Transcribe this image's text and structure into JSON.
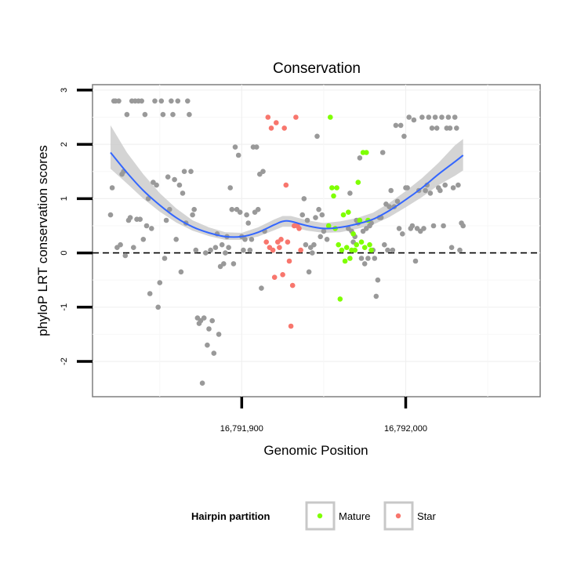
{
  "chart_data": {
    "type": "scatter",
    "title": "Conservation",
    "xlabel": "Genomic Position",
    "ylabel": "phyloP LRT conservation scores",
    "xlim": [
      16791809,
      16792082
    ],
    "ylim": [
      -2.65,
      3.1
    ],
    "x_ticks": [
      {
        "value": 16791900,
        "label": "16,791,900"
      },
      {
        "value": 16792000,
        "label": "16,792,000"
      }
    ],
    "y_ticks": [
      {
        "value": -2,
        "label": "-2"
      },
      {
        "value": -1,
        "label": "-1"
      },
      {
        "value": 0,
        "label": "0"
      },
      {
        "value": 1,
        "label": "1"
      },
      {
        "value": 2,
        "label": "2"
      },
      {
        "value": 3,
        "label": "3"
      }
    ],
    "grid": true,
    "reference_line": {
      "y": 0,
      "style": "dashed"
    },
    "legend": {
      "title": "Hairpin partition",
      "position": "bottom",
      "entries": [
        {
          "label": "Mature",
          "color": "#7FFF00"
        },
        {
          "label": "Star",
          "color": "#F8766D"
        }
      ]
    },
    "colors": {
      "other": "#999999",
      "Mature": "#7FFF00",
      "Star": "#F8766D",
      "smooth": "#3366FF",
      "ribbon": "#CCCCCC"
    },
    "series": [
      {
        "name": "",
        "partition": "other",
        "points": [
          [
            16791820,
            0.7
          ],
          [
            16791821,
            1.2
          ],
          [
            16791822,
            2.8
          ],
          [
            16791823,
            2.8
          ],
          [
            16791824,
            0.1
          ],
          [
            16791825,
            2.8
          ],
          [
            16791826,
            0.15
          ],
          [
            16791827,
            1.45
          ],
          [
            16791828,
            1.5
          ],
          [
            16791829,
            -0.05
          ],
          [
            16791830,
            2.55
          ],
          [
            16791831,
            0.6
          ],
          [
            16791832,
            0.65
          ],
          [
            16791833,
            2.8
          ],
          [
            16791834,
            0.1
          ],
          [
            16791835,
            2.8
          ],
          [
            16791836,
            0.62
          ],
          [
            16791837,
            2.8
          ],
          [
            16791838,
            0.62
          ],
          [
            16791839,
            2.8
          ],
          [
            16791840,
            0.25
          ],
          [
            16791841,
            2.55
          ],
          [
            16791842,
            0.5
          ],
          [
            16791843,
            1.0
          ],
          [
            16791844,
            -0.75
          ],
          [
            16791845,
            0.45
          ],
          [
            16791846,
            1.3
          ],
          [
            16791847,
            2.8
          ],
          [
            16791848,
            1.25
          ],
          [
            16791849,
            -1.0
          ],
          [
            16791850,
            -0.55
          ],
          [
            16791851,
            2.8
          ],
          [
            16791852,
            2.55
          ],
          [
            16791853,
            -0.1
          ],
          [
            16791854,
            0.6
          ],
          [
            16791855,
            1.4
          ],
          [
            16791856,
            0.8
          ],
          [
            16791857,
            2.8
          ],
          [
            16791858,
            2.55
          ],
          [
            16791859,
            1.35
          ],
          [
            16791860,
            0.25
          ],
          [
            16791861,
            2.8
          ],
          [
            16791862,
            1.25
          ],
          [
            16791863,
            -0.35
          ],
          [
            16791864,
            1.1
          ],
          [
            16791865,
            1.5
          ],
          [
            16791866,
            0.55
          ],
          [
            16791867,
            2.8
          ],
          [
            16791868,
            2.55
          ],
          [
            16791869,
            1.5
          ],
          [
            16791870,
            0.7
          ],
          [
            16791871,
            0.8
          ],
          [
            16791872,
            0.05
          ],
          [
            16791873,
            -1.2
          ],
          [
            16791874,
            -1.3
          ],
          [
            16791875,
            -1.25
          ],
          [
            16791876,
            -2.4
          ],
          [
            16791877,
            -1.2
          ],
          [
            16791878,
            0.0
          ],
          [
            16791879,
            -1.7
          ],
          [
            16791880,
            -1.4
          ],
          [
            16791881,
            0.05
          ],
          [
            16791882,
            -1.25
          ],
          [
            16791883,
            -1.85
          ],
          [
            16791884,
            0.1
          ],
          [
            16791885,
            0.35
          ],
          [
            16791886,
            -1.5
          ],
          [
            16791887,
            -0.25
          ],
          [
            16791888,
            0.15
          ],
          [
            16791889,
            -0.2
          ],
          [
            16791890,
            0.0
          ],
          [
            16791891,
            0.3
          ],
          [
            16791892,
            0.1
          ],
          [
            16791893,
            1.2
          ],
          [
            16791894,
            0.8
          ],
          [
            16791895,
            -0.2
          ],
          [
            16791896,
            1.95
          ],
          [
            16791897,
            0.8
          ],
          [
            16791898,
            1.8
          ],
          [
            16791899,
            0.75
          ],
          [
            16791900,
            0.3
          ],
          [
            16791901,
            0.05
          ],
          [
            16791902,
            0.25
          ],
          [
            16791903,
            0.7
          ],
          [
            16791904,
            0.55
          ],
          [
            16791905,
            0.05
          ],
          [
            16791906,
            0.25
          ],
          [
            16791907,
            1.95
          ],
          [
            16791908,
            0.75
          ],
          [
            16791909,
            1.95
          ],
          [
            16791910,
            0.8
          ],
          [
            16791911,
            1.45
          ],
          [
            16791912,
            -0.65
          ],
          [
            16791913,
            1.5
          ],
          [
            16791914,
            0.4
          ],
          [
            16791937,
            0.7
          ],
          [
            16791938,
            1.0
          ],
          [
            16791939,
            0.15
          ],
          [
            16791940,
            0.6
          ],
          [
            16791941,
            -0.35
          ],
          [
            16791942,
            0.1
          ],
          [
            16791943,
            0.0
          ],
          [
            16791944,
            0.15
          ],
          [
            16791945,
            0.65
          ],
          [
            16791946,
            2.15
          ],
          [
            16791947,
            0.8
          ],
          [
            16791948,
            0.3
          ],
          [
            16791949,
            0.7
          ],
          [
            16791950,
            0.4
          ],
          [
            16791952,
            0.25
          ],
          [
            16791965,
            0.45
          ],
          [
            16791966,
            1.1
          ],
          [
            16791967,
            0.4
          ],
          [
            16791968,
            0.2
          ],
          [
            16791969,
            0.3
          ],
          [
            16791970,
            0.6
          ],
          [
            16791971,
            0.55
          ],
          [
            16791972,
            1.75
          ],
          [
            16791973,
            -0.1
          ],
          [
            16791974,
            0.4
          ],
          [
            16791975,
            -0.2
          ],
          [
            16791976,
            0.45
          ],
          [
            16791977,
            -0.1
          ],
          [
            16791978,
            0.5
          ],
          [
            16791979,
            0.55
          ],
          [
            16791980,
            0.05
          ],
          [
            16791981,
            -0.1
          ],
          [
            16791982,
            -0.8
          ],
          [
            16791983,
            -0.5
          ],
          [
            16791984,
            0.65
          ],
          [
            16791985,
            0.65
          ],
          [
            16791986,
            1.85
          ],
          [
            16791987,
            0.15
          ],
          [
            16791988,
            0.9
          ],
          [
            16791989,
            0.05
          ],
          [
            16791990,
            0.85
          ],
          [
            16791991,
            1.15
          ],
          [
            16791992,
            0.05
          ],
          [
            16791993,
            0.85
          ],
          [
            16791994,
            2.35
          ],
          [
            16791995,
            0.95
          ],
          [
            16791996,
            0.45
          ],
          [
            16791997,
            2.35
          ],
          [
            16791998,
            0.35
          ],
          [
            16791999,
            2.15
          ],
          [
            16792000,
            1.2
          ],
          [
            16792001,
            1.2
          ],
          [
            16792002,
            2.5
          ],
          [
            16792003,
            0.45
          ],
          [
            16792004,
            0.5
          ],
          [
            16792005,
            2.45
          ],
          [
            16792006,
            -0.15
          ],
          [
            16792007,
            0.45
          ],
          [
            16792008,
            1.15
          ],
          [
            16792009,
            0.4
          ],
          [
            16792010,
            2.5
          ],
          [
            16792011,
            0.45
          ],
          [
            16792012,
            1.15
          ],
          [
            16792013,
            1.25
          ],
          [
            16792014,
            2.5
          ],
          [
            16792015,
            1.1
          ],
          [
            16792016,
            2.3
          ],
          [
            16792017,
            0.5
          ],
          [
            16792018,
            2.5
          ],
          [
            16792019,
            2.3
          ],
          [
            16792020,
            1.2
          ],
          [
            16792021,
            1.15
          ],
          [
            16792022,
            2.5
          ],
          [
            16792023,
            0.5
          ],
          [
            16792024,
            1.25
          ],
          [
            16792025,
            2.3
          ],
          [
            16792026,
            2.5
          ],
          [
            16792027,
            2.3
          ],
          [
            16792028,
            0.1
          ],
          [
            16792029,
            1.2
          ],
          [
            16792030,
            2.5
          ],
          [
            16792031,
            2.3
          ],
          [
            16792032,
            1.25
          ],
          [
            16792033,
            0.05
          ],
          [
            16792034,
            0.55
          ],
          [
            16792035,
            0.5
          ]
        ]
      },
      {
        "name": "Star",
        "partition": "Star",
        "points": [
          [
            16791915,
            0.2
          ],
          [
            16791916,
            2.5
          ],
          [
            16791917,
            0.1
          ],
          [
            16791918,
            2.3
          ],
          [
            16791919,
            0.05
          ],
          [
            16791920,
            -0.45
          ],
          [
            16791921,
            2.4
          ],
          [
            16791922,
            0.2
          ],
          [
            16791923,
            0.1
          ],
          [
            16791924,
            0.25
          ],
          [
            16791925,
            -0.4
          ],
          [
            16791926,
            2.3
          ],
          [
            16791927,
            1.25
          ],
          [
            16791928,
            0.2
          ],
          [
            16791929,
            -0.15
          ],
          [
            16791930,
            -1.35
          ],
          [
            16791931,
            -0.6
          ],
          [
            16791932,
            0.5
          ],
          [
            16791933,
            2.5
          ],
          [
            16791934,
            0.5
          ],
          [
            16791935,
            0.45
          ],
          [
            16791936,
            0.05
          ]
        ]
      },
      {
        "name": "Mature",
        "partition": "Mature",
        "points": [
          [
            16791953,
            0.5
          ],
          [
            16791954,
            2.5
          ],
          [
            16791955,
            1.2
          ],
          [
            16791956,
            1.05
          ],
          [
            16791957,
            0.45
          ],
          [
            16791958,
            1.2
          ],
          [
            16791959,
            0.15
          ],
          [
            16791960,
            -0.85
          ],
          [
            16791961,
            0.05
          ],
          [
            16791962,
            0.7
          ],
          [
            16791963,
            -0.15
          ],
          [
            16791964,
            0.1
          ],
          [
            16791965,
            0.75
          ],
          [
            16791966,
            -0.1
          ],
          [
            16791967,
            0.05
          ],
          [
            16791968,
            0.35
          ],
          [
            16791969,
            0.05
          ],
          [
            16791970,
            0.15
          ],
          [
            16791971,
            1.3
          ],
          [
            16791972,
            0.6
          ],
          [
            16791973,
            0.2
          ],
          [
            16791974,
            1.85
          ],
          [
            16791975,
            0.1
          ],
          [
            16791976,
            1.85
          ],
          [
            16791977,
            0.6
          ],
          [
            16791978,
            0.15
          ],
          [
            16791979,
            0.05
          ]
        ]
      }
    ],
    "smooth": {
      "x": [
        16791820,
        16791830,
        16791840,
        16791850,
        16791860,
        16791870,
        16791880,
        16791890,
        16791900,
        16791910,
        16791920,
        16791925,
        16791930,
        16791940,
        16791950,
        16791960,
        16791970,
        16791980,
        16791990,
        16792000,
        16792010,
        16792020,
        16792030,
        16792035
      ],
      "y": [
        1.85,
        1.48,
        1.15,
        0.88,
        0.65,
        0.48,
        0.37,
        0.3,
        0.3,
        0.38,
        0.52,
        0.58,
        0.58,
        0.5,
        0.45,
        0.47,
        0.53,
        0.62,
        0.78,
        0.98,
        1.2,
        1.45,
        1.68,
        1.8
      ],
      "lower": [
        1.55,
        1.28,
        1.0,
        0.76,
        0.56,
        0.41,
        0.31,
        0.24,
        0.24,
        0.3,
        0.42,
        0.48,
        0.48,
        0.41,
        0.37,
        0.38,
        0.44,
        0.52,
        0.66,
        0.84,
        1.03,
        1.25,
        1.42,
        1.52
      ],
      "upper": [
        2.35,
        1.85,
        1.45,
        1.1,
        0.82,
        0.6,
        0.47,
        0.38,
        0.37,
        0.47,
        0.62,
        0.68,
        0.68,
        0.6,
        0.55,
        0.58,
        0.64,
        0.74,
        0.92,
        1.14,
        1.38,
        1.66,
        1.98,
        2.1
      ]
    }
  }
}
